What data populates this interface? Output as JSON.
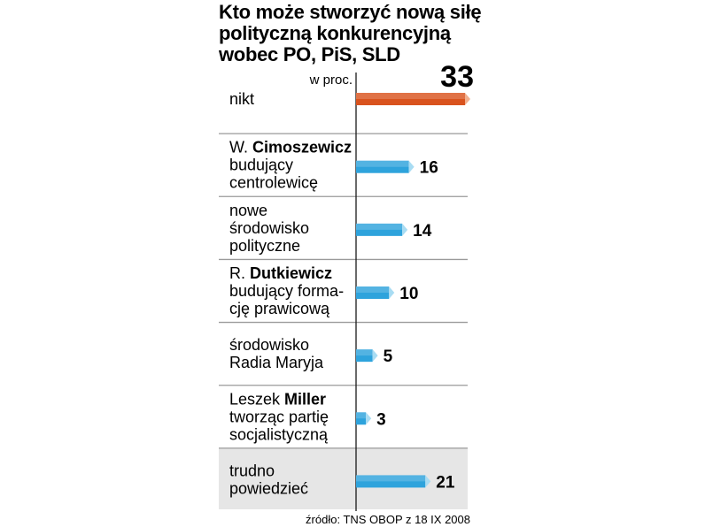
{
  "chart_data": {
    "type": "bar",
    "title": [
      "Kto może stworzyć nową siłę",
      "polityczną konkurencyjną",
      "wobec PO, PiS, SLD"
    ],
    "unit": "w proc.",
    "source": "źródło: TNS OBOP z 18 IX 2008",
    "colors": {
      "highlight": "#d9531e",
      "bar": "#2ea3dc",
      "highlight_row": "#e6e6e6"
    },
    "categories": [
      {
        "lines": [
          {
            "parts": [
              {
                "t": "nikt",
                "b": false
              }
            ]
          }
        ],
        "value": 33,
        "highlight": true,
        "shaded": false
      },
      {
        "lines": [
          {
            "parts": [
              {
                "t": "W. ",
                "b": false
              },
              {
                "t": "Cimoszewicz",
                "b": true
              }
            ]
          },
          {
            "parts": [
              {
                "t": "budujący",
                "b": false
              }
            ]
          },
          {
            "parts": [
              {
                "t": "centrolewicę",
                "b": false
              }
            ]
          }
        ],
        "value": 16,
        "highlight": false,
        "shaded": false
      },
      {
        "lines": [
          {
            "parts": [
              {
                "t": "nowe",
                "b": false
              }
            ]
          },
          {
            "parts": [
              {
                "t": "środowisko",
                "b": false
              }
            ]
          },
          {
            "parts": [
              {
                "t": "polityczne",
                "b": false
              }
            ]
          }
        ],
        "value": 14,
        "highlight": false,
        "shaded": false
      },
      {
        "lines": [
          {
            "parts": [
              {
                "t": "R. ",
                "b": false
              },
              {
                "t": "Dutkiewicz",
                "b": true
              }
            ]
          },
          {
            "parts": [
              {
                "t": "budujący forma-",
                "b": false
              }
            ]
          },
          {
            "parts": [
              {
                "t": "cję prawicową",
                "b": false
              }
            ]
          }
        ],
        "value": 10,
        "highlight": false,
        "shaded": false
      },
      {
        "lines": [
          {
            "parts": [
              {
                "t": "środowisko",
                "b": false
              }
            ]
          },
          {
            "parts": [
              {
                "t": "Radia Maryja",
                "b": false
              }
            ]
          }
        ],
        "value": 5,
        "highlight": false,
        "shaded": false
      },
      {
        "lines": [
          {
            "parts": [
              {
                "t": "Leszek ",
                "b": false
              },
              {
                "t": "Miller",
                "b": true
              }
            ]
          },
          {
            "parts": [
              {
                "t": "tworząc partię",
                "b": false
              }
            ]
          },
          {
            "parts": [
              {
                "t": "socjalistyczną",
                "b": false
              }
            ]
          }
        ],
        "value": 3,
        "highlight": false,
        "shaded": false
      },
      {
        "lines": [
          {
            "parts": [
              {
                "t": "trudno",
                "b": false
              }
            ]
          },
          {
            "parts": [
              {
                "t": "powiedzieć",
                "b": false
              }
            ]
          }
        ],
        "value": 21,
        "highlight": false,
        "shaded": true
      }
    ],
    "xlim": [
      0,
      33
    ],
    "grid": false,
    "legend": "none"
  }
}
